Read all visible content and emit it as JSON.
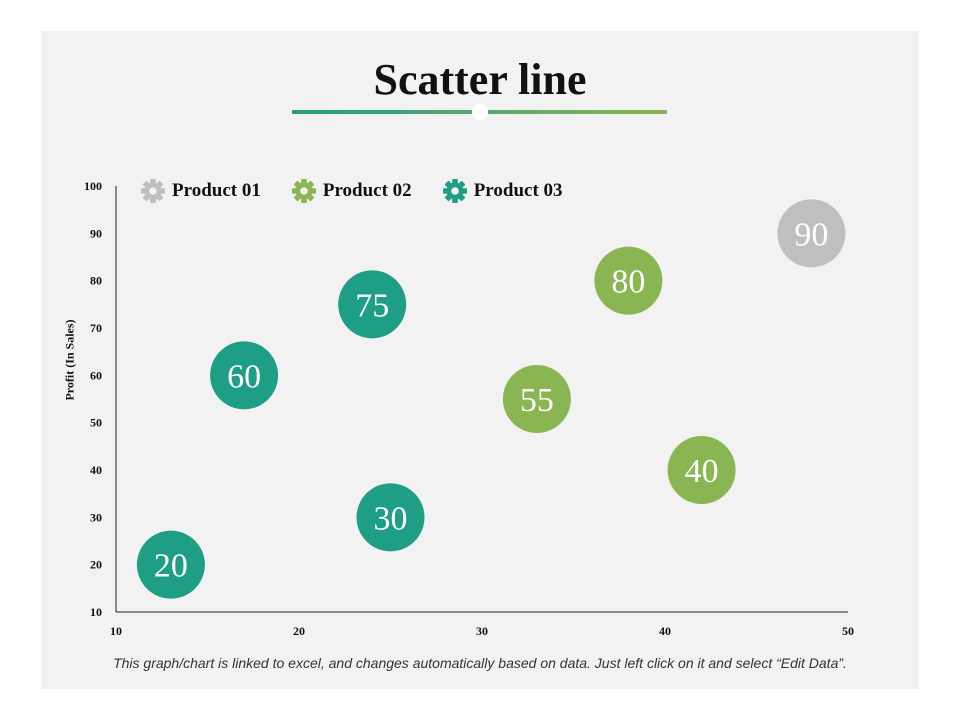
{
  "chart_data": {
    "type": "scatter",
    "title": "Scatter line",
    "ylabel": "Profit  (In Sales)",
    "xlabel": "",
    "xlim": [
      10,
      50
    ],
    "ylim": [
      10,
      100
    ],
    "xticks": [
      "10",
      "20",
      "30",
      "40",
      "50"
    ],
    "yticks": [
      "10",
      "20",
      "30",
      "40",
      "50",
      "60",
      "70",
      "80",
      "90",
      "100"
    ],
    "legend_position": "top-left",
    "grid": false,
    "series": [
      {
        "name": "Product 01",
        "color": "#bfbfbf",
        "points": [
          {
            "x": 48,
            "y": 90,
            "label": "90"
          }
        ]
      },
      {
        "name": "Product 02",
        "color": "#8ab553",
        "points": [
          {
            "x": 38,
            "y": 80,
            "label": "80"
          },
          {
            "x": 33,
            "y": 55,
            "label": "55"
          },
          {
            "x": 42,
            "y": 40,
            "label": "40"
          }
        ]
      },
      {
        "name": "Product 03",
        "color": "#1f9e86",
        "points": [
          {
            "x": 24,
            "y": 75,
            "label": "75"
          },
          {
            "x": 17,
            "y": 60,
            "label": "60"
          },
          {
            "x": 25,
            "y": 30,
            "label": "30"
          },
          {
            "x": 13,
            "y": 20,
            "label": "20"
          }
        ]
      }
    ]
  },
  "footnote": "This graph/chart is linked to excel, and changes automatically based on data. Just left click on it and select “Edit Data”.",
  "icons": {
    "legend_marker": "gear-icon"
  },
  "colors": {
    "underline_start": "#1f9e86",
    "underline_end": "#8ab553"
  }
}
